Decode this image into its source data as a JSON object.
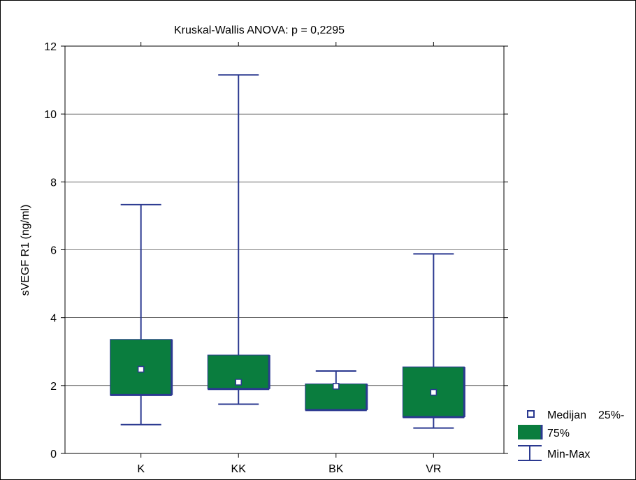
{
  "chart_data": {
    "type": "boxplot",
    "title": "Kruskal-Wallis ANOVA: p = 0,2295",
    "xlabel": "",
    "ylabel": "sVEGF R1 (ng/ml)",
    "ylim": [
      0,
      12
    ],
    "yticks": [
      0,
      2,
      4,
      6,
      8,
      10,
      12
    ],
    "grid": true,
    "legend_position": "bottom-right",
    "categories": [
      "K",
      "KK",
      "BK",
      "VR"
    ],
    "boxes": [
      {
        "category": "K",
        "min": 0.85,
        "q1": 1.72,
        "median": 2.48,
        "q3": 3.36,
        "max": 7.33
      },
      {
        "category": "KK",
        "min": 1.45,
        "q1": 1.9,
        "median": 2.1,
        "q3": 2.9,
        "max": 11.15
      },
      {
        "category": "BK",
        "min": 1.28,
        "q1": 1.28,
        "median": 1.98,
        "q3": 2.05,
        "max": 2.43
      },
      {
        "category": "VR",
        "min": 0.75,
        "q1": 1.07,
        "median": 1.8,
        "q3": 2.55,
        "max": 5.88
      }
    ],
    "legend": {
      "median_label": "Medijan",
      "box_label_line1": "25%-",
      "box_label_line2": "75%",
      "whisker_label": "Min-Max"
    },
    "colors": {
      "box_fill": "#0a7d3e",
      "line": "#2b3990",
      "median_fill": "#ffffff",
      "grid": "#000000"
    }
  }
}
